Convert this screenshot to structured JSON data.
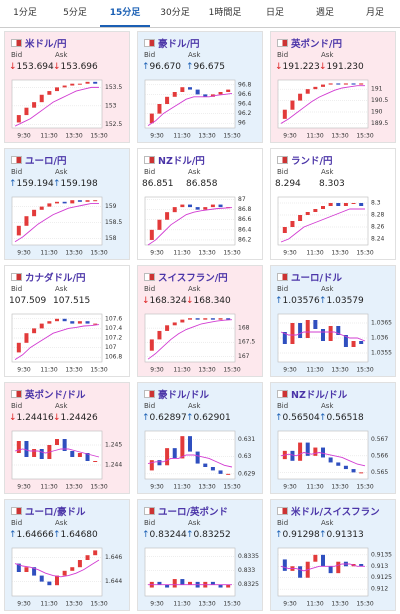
{
  "tabs": [
    "1分足",
    "5分足",
    "15分足",
    "30分足",
    "1時間足",
    "日足",
    "週足",
    "月足"
  ],
  "selected_tab": 2,
  "labels": {
    "bid": "Bid",
    "ask": "Ask"
  },
  "time_labels": [
    "9:30",
    "11:30",
    "13:30",
    "15:30"
  ],
  "cards": [
    {
      "name": "米ドル/円",
      "trend": "↓",
      "bid": "153.694",
      "ask": "153.696",
      "ylim": [
        152.4,
        153.7
      ],
      "yticks": [
        152.5,
        153,
        153.5
      ],
      "closes": [
        152.55,
        152.75,
        152.95,
        153.1,
        153.3,
        153.4,
        153.5,
        153.55,
        153.6,
        153.6,
        153.65,
        153.6
      ],
      "ma": [
        152.45,
        152.55,
        152.65,
        152.8,
        152.95,
        153.1,
        153.2,
        153.3,
        153.4,
        153.45,
        153.5,
        153.5
      ]
    },
    {
      "name": "豪ドル/円",
      "trend": "↑",
      "bid": "96.670",
      "ask": "96.675",
      "ylim": [
        95.9,
        96.9
      ],
      "yticks": [
        96,
        96.2,
        96.4,
        96.6,
        96.8
      ],
      "closes": [
        96.0,
        96.2,
        96.4,
        96.55,
        96.65,
        96.75,
        96.7,
        96.6,
        96.55,
        96.6,
        96.65,
        96.7
      ],
      "ma": [
        95.95,
        96.05,
        96.2,
        96.3,
        96.4,
        96.5,
        96.55,
        96.55,
        96.55,
        96.58,
        96.6,
        96.62
      ]
    },
    {
      "name": "英ポンド/円",
      "trend": "↓",
      "bid": "191.223",
      "ask": "191.230",
      "ylim": [
        189.3,
        191.4
      ],
      "yticks": [
        189.5,
        190,
        190.5,
        191
      ],
      "closes": [
        189.7,
        190.1,
        190.5,
        190.8,
        191.0,
        191.1,
        191.2,
        191.25,
        191.2,
        191.25,
        191.2,
        191.25
      ],
      "ma": [
        189.5,
        189.7,
        189.95,
        190.2,
        190.45,
        190.65,
        190.8,
        190.95,
        191.05,
        191.1,
        191.15,
        191.15
      ]
    },
    {
      "name": "ユーロ/円",
      "trend": "↑",
      "bid": "159.194",
      "ask": "159.198",
      "ylim": [
        157.8,
        159.3
      ],
      "yticks": [
        158,
        158.5,
        159
      ],
      "closes": [
        158.1,
        158.4,
        158.7,
        158.9,
        159.0,
        159.1,
        159.15,
        159.1,
        159.2,
        159.15,
        159.2,
        159.2
      ],
      "ma": [
        157.9,
        158.05,
        158.25,
        158.45,
        158.6,
        158.75,
        158.85,
        158.95,
        159.0,
        159.05,
        159.1,
        159.1
      ]
    },
    {
      "name": "NZドル/円",
      "bid": "86.851",
      "ask": "86.858",
      "ylim": [
        86.1,
        87.05
      ],
      "yticks": [
        86.2,
        86.4,
        86.6,
        86.8,
        87
      ],
      "closes": [
        86.2,
        86.4,
        86.6,
        86.75,
        86.85,
        86.9,
        86.85,
        86.8,
        86.85,
        86.9,
        86.85,
        86.85
      ],
      "ma": [
        86.1,
        86.2,
        86.35,
        86.5,
        86.6,
        86.7,
        86.75,
        86.78,
        86.8,
        86.82,
        86.83,
        86.84
      ]
    },
    {
      "name": "ランド/円",
      "bid": "8.294",
      "ask": "8.303",
      "ylim": [
        8.23,
        8.31
      ],
      "yticks": [
        8.24,
        8.26,
        8.28,
        8.3
      ],
      "closes": [
        8.25,
        8.26,
        8.27,
        8.28,
        8.285,
        8.29,
        8.295,
        8.3,
        8.295,
        8.3,
        8.3,
        8.295
      ],
      "ma": [
        8.235,
        8.24,
        8.25,
        8.26,
        8.265,
        8.27,
        8.275,
        8.28,
        8.285,
        8.29,
        8.29,
        8.29
      ]
    },
    {
      "name": "カナダドル/円",
      "bid": "107.509",
      "ask": "107.515",
      "ylim": [
        106.7,
        107.7
      ],
      "yticks": [
        106.8,
        107,
        107.2,
        107.4,
        107.6
      ],
      "closes": [
        106.9,
        107.1,
        107.3,
        107.4,
        107.5,
        107.55,
        107.6,
        107.55,
        107.5,
        107.55,
        107.5,
        107.5
      ],
      "ma": [
        106.75,
        106.85,
        107.0,
        107.1,
        107.2,
        107.3,
        107.35,
        107.4,
        107.42,
        107.45,
        107.46,
        107.48
      ]
    },
    {
      "name": "スイスフラン/円",
      "trend": "↓",
      "bid": "168.324",
      "ask": "168.340",
      "ylim": [
        166.8,
        168.5
      ],
      "yticks": [
        167,
        167.5,
        168
      ],
      "closes": [
        167.2,
        167.6,
        167.9,
        168.1,
        168.2,
        168.3,
        168.35,
        168.3,
        168.35,
        168.3,
        168.35,
        168.3
      ],
      "ma": [
        166.9,
        167.1,
        167.35,
        167.6,
        167.8,
        167.95,
        168.05,
        168.15,
        168.2,
        168.25,
        168.28,
        168.3
      ]
    },
    {
      "name": "ユーロ/ドル",
      "trend": "↑",
      "bid": "1.03576",
      "ask": "1.03579",
      "ylim": [
        1.0352,
        1.0368
      ],
      "yticks": [
        1.0355,
        1.036,
        1.0365
      ],
      "closes": [
        1.0362,
        1.0358,
        1.0365,
        1.036,
        1.0366,
        1.0363,
        1.0359,
        1.0364,
        1.0361,
        1.0357,
        1.0359,
        1.0358
      ],
      "ma": [
        1.0362,
        1.0361,
        1.0361,
        1.0362,
        1.0362,
        1.0362,
        1.0362,
        1.0362,
        1.0361,
        1.036,
        1.036,
        1.0359
      ]
    },
    {
      "name": "英ポンド/ドル",
      "trend": "↓",
      "bid": "1.24416",
      "ask": "1.24426",
      "ylim": [
        1.2433,
        1.2457
      ],
      "yticks": [
        1.244,
        1.245
      ],
      "closes": [
        1.2446,
        1.2452,
        1.2444,
        1.2448,
        1.2443,
        1.245,
        1.2453,
        1.2447,
        1.2444,
        1.2446,
        1.2442,
        1.2442
      ],
      "ma": [
        1.2447,
        1.2448,
        1.2447,
        1.2447,
        1.2446,
        1.2447,
        1.2448,
        1.2448,
        1.2447,
        1.2446,
        1.2445,
        1.2444
      ]
    },
    {
      "name": "豪ドル/ドル",
      "trend": "↑",
      "bid": "0.62897",
      "ask": "0.62901",
      "ylim": [
        0.6287,
        0.6315
      ],
      "yticks": [
        0.629,
        0.63,
        0.631
      ],
      "closes": [
        0.6292,
        0.6298,
        0.6295,
        0.6305,
        0.6299,
        0.6312,
        0.6303,
        0.6296,
        0.6294,
        0.6292,
        0.629,
        0.629
      ],
      "ma": [
        0.6296,
        0.6297,
        0.6297,
        0.6299,
        0.6299,
        0.6301,
        0.6301,
        0.63,
        0.6299,
        0.6297,
        0.6295,
        0.6294
      ]
    },
    {
      "name": "NZドル/ドル",
      "trend": "↑",
      "bid": "0.56504",
      "ask": "0.56518",
      "ylim": [
        0.5646,
        0.5675
      ],
      "yticks": [
        0.565,
        0.566,
        0.567
      ],
      "closes": [
        0.5658,
        0.5663,
        0.5657,
        0.5668,
        0.566,
        0.5665,
        0.5659,
        0.5656,
        0.5654,
        0.5652,
        0.565,
        0.565
      ],
      "ma": [
        0.566,
        0.5661,
        0.566,
        0.5662,
        0.5661,
        0.5662,
        0.5661,
        0.566,
        0.5659,
        0.5657,
        0.5655,
        0.5654
      ]
    },
    {
      "name": "ユーロ/豪ドル",
      "trend": "↑",
      "bid": "1.64666",
      "ask": "1.64680",
      "ylim": [
        1.6428,
        1.6468
      ],
      "yticks": [
        1.644,
        1.646
      ],
      "closes": [
        1.6455,
        1.6448,
        1.6452,
        1.6445,
        1.644,
        1.6437,
        1.6445,
        1.6449,
        1.6452,
        1.6458,
        1.6462,
        1.6466
      ],
      "ma": [
        1.6455,
        1.6453,
        1.6452,
        1.645,
        1.6447,
        1.6445,
        1.6444,
        1.6445,
        1.6447,
        1.645,
        1.6454,
        1.6458
      ]
    },
    {
      "name": "ユーロ/英ポンド",
      "trend": "↑",
      "bid": "0.83244",
      "ask": "0.83252",
      "ylim": [
        0.8321,
        0.8338
      ],
      "yticks": [
        0.8325,
        0.833,
        0.8335
      ],
      "closes": [
        0.8324,
        0.8326,
        0.8325,
        0.8324,
        0.8327,
        0.8325,
        0.8326,
        0.8324,
        0.8326,
        0.8325,
        0.8324,
        0.8325
      ],
      "ma": [
        0.8325,
        0.8325,
        0.8325,
        0.8325,
        0.8325,
        0.8325,
        0.8325,
        0.8325,
        0.8325,
        0.8325,
        0.8325,
        0.8325
      ]
    },
    {
      "name": "米ドル/スイスフラン",
      "trend": "↑",
      "bid": "0.91298",
      "ask": "0.91313",
      "ylim": [
        0.9117,
        0.9138
      ],
      "yticks": [
        0.912,
        0.9125,
        0.913,
        0.9135
      ],
      "closes": [
        0.9133,
        0.9128,
        0.913,
        0.9125,
        0.9132,
        0.9135,
        0.913,
        0.9127,
        0.9132,
        0.913,
        0.9131,
        0.913
      ],
      "ma": [
        0.913,
        0.9129,
        0.9129,
        0.9128,
        0.9129,
        0.913,
        0.913,
        0.913,
        0.9131,
        0.9131,
        0.913,
        0.913
      ]
    }
  ]
}
